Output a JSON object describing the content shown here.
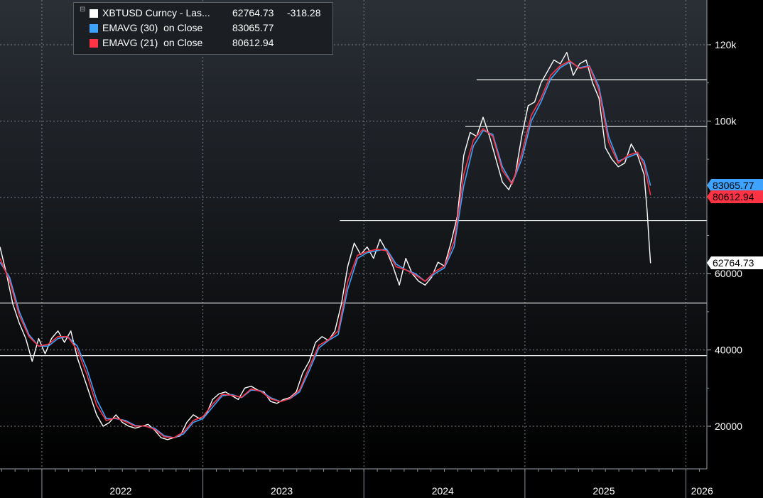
{
  "legend": {
    "items": [
      {
        "label": "XBTUSD Curncy - Las...",
        "value": "62764.73",
        "change": "-318.28",
        "color": "#ffffff"
      },
      {
        "label": "EMAVG (30)  on Close",
        "value": "83065.77",
        "color": "#3ea3ff"
      },
      {
        "label": "EMAVG (21)  on Close",
        "value": "80612.94",
        "color": "#ff3344"
      }
    ]
  },
  "price_tags": [
    {
      "text": "83065.77",
      "value": 83065.77,
      "bg": "#3ea3ff",
      "fg": "#000000"
    },
    {
      "text": "80612.94",
      "value": 80612.94,
      "bg": "#ff3344",
      "fg": "#000000"
    },
    {
      "text": "62764.73",
      "value": 62764.73,
      "bg": "#ffffff",
      "fg": "#000000"
    }
  ],
  "chart_data": {
    "type": "line",
    "ylim": [
      10000,
      130000
    ],
    "y_ticks": [
      {
        "value": 20000,
        "label": "20000"
      },
      {
        "value": 40000,
        "label": "40000"
      },
      {
        "value": 60000,
        "label": "60000"
      },
      {
        "value": 100000,
        "label": "100k"
      },
      {
        "value": 120000,
        "label": "120k"
      }
    ],
    "x_labels": [
      "2022",
      "2023",
      "2024",
      "2025",
      "2026"
    ],
    "x_domain": [
      2021.74,
      2026.13
    ],
    "grid": true,
    "horizontal_levels": [
      {
        "value": 38500,
        "from": 2021.74
      },
      {
        "value": 52300,
        "from": 2021.74
      },
      {
        "value": 73900,
        "from": 2023.85
      },
      {
        "value": 98600,
        "from": 2024.63
      },
      {
        "value": 110800,
        "from": 2024.7
      }
    ],
    "series": [
      {
        "name": "XBTUSD Curncy - Las...",
        "color": "#ffffff",
        "points": [
          [
            2021.74,
            67000
          ],
          [
            2021.78,
            60000
          ],
          [
            2021.82,
            52000
          ],
          [
            2021.86,
            47000
          ],
          [
            2021.9,
            43000
          ],
          [
            2021.94,
            37000
          ],
          [
            2021.98,
            43000
          ],
          [
            2022.02,
            39000
          ],
          [
            2022.06,
            43000
          ],
          [
            2022.1,
            45000
          ],
          [
            2022.14,
            42000
          ],
          [
            2022.18,
            45000
          ],
          [
            2022.22,
            38000
          ],
          [
            2022.26,
            33000
          ],
          [
            2022.3,
            28000
          ],
          [
            2022.34,
            23000
          ],
          [
            2022.38,
            20000
          ],
          [
            2022.42,
            21000
          ],
          [
            2022.46,
            23000
          ],
          [
            2022.5,
            21000
          ],
          [
            2022.54,
            20000
          ],
          [
            2022.58,
            19500
          ],
          [
            2022.62,
            20000
          ],
          [
            2022.66,
            20500
          ],
          [
            2022.7,
            19000
          ],
          [
            2022.74,
            17000
          ],
          [
            2022.78,
            16500
          ],
          [
            2022.82,
            17000
          ],
          [
            2022.86,
            17500
          ],
          [
            2022.9,
            21000
          ],
          [
            2022.94,
            23000
          ],
          [
            2022.98,
            22000
          ],
          [
            2023.02,
            23000
          ],
          [
            2023.06,
            27000
          ],
          [
            2023.1,
            28500
          ],
          [
            2023.14,
            29000
          ],
          [
            2023.18,
            28000
          ],
          [
            2023.22,
            27000
          ],
          [
            2023.26,
            30000
          ],
          [
            2023.3,
            30500
          ],
          [
            2023.34,
            29500
          ],
          [
            2023.38,
            29000
          ],
          [
            2023.42,
            26500
          ],
          [
            2023.46,
            26000
          ],
          [
            2023.5,
            27000
          ],
          [
            2023.54,
            27500
          ],
          [
            2023.58,
            29000
          ],
          [
            2023.62,
            34000
          ],
          [
            2023.66,
            37000
          ],
          [
            2023.7,
            42000
          ],
          [
            2023.74,
            43500
          ],
          [
            2023.78,
            42500
          ],
          [
            2023.82,
            45000
          ],
          [
            2023.86,
            52000
          ],
          [
            2023.9,
            62000
          ],
          [
            2023.94,
            68000
          ],
          [
            2023.98,
            65000
          ],
          [
            2024.02,
            67000
          ],
          [
            2024.06,
            64000
          ],
          [
            2024.1,
            69000
          ],
          [
            2024.14,
            66000
          ],
          [
            2024.18,
            62000
          ],
          [
            2024.22,
            57000
          ],
          [
            2024.26,
            64000
          ],
          [
            2024.3,
            60000
          ],
          [
            2024.34,
            58000
          ],
          [
            2024.38,
            57000
          ],
          [
            2024.42,
            59000
          ],
          [
            2024.46,
            63000
          ],
          [
            2024.5,
            62000
          ],
          [
            2024.54,
            68000
          ],
          [
            2024.58,
            75000
          ],
          [
            2024.62,
            91000
          ],
          [
            2024.66,
            97000
          ],
          [
            2024.7,
            96000
          ],
          [
            2024.74,
            101000
          ],
          [
            2024.78,
            96000
          ],
          [
            2024.82,
            90000
          ],
          [
            2024.86,
            84000
          ],
          [
            2024.9,
            82000
          ],
          [
            2024.94,
            86000
          ],
          [
            2024.98,
            96000
          ],
          [
            2025.02,
            104000
          ],
          [
            2025.06,
            105000
          ],
          [
            2025.1,
            110000
          ],
          [
            2025.14,
            113000
          ],
          [
            2025.18,
            116000
          ],
          [
            2025.22,
            115000
          ],
          [
            2025.26,
            118000
          ],
          [
            2025.3,
            112000
          ],
          [
            2025.34,
            115000
          ],
          [
            2025.38,
            116000
          ],
          [
            2025.42,
            110000
          ],
          [
            2025.46,
            106000
          ],
          [
            2025.5,
            93000
          ],
          [
            2025.54,
            90000
          ],
          [
            2025.58,
            88000
          ],
          [
            2025.62,
            89000
          ],
          [
            2025.66,
            94000
          ],
          [
            2025.7,
            91000
          ],
          [
            2025.74,
            86000
          ],
          [
            2025.76,
            76000
          ],
          [
            2025.77,
            69000
          ],
          [
            2025.78,
            62764.73
          ]
        ]
      },
      {
        "name": "EMAVG (30)  on Close",
        "color": "#3ea3ff",
        "points": [
          [
            2021.74,
            63000
          ],
          [
            2021.8,
            59000
          ],
          [
            2021.86,
            50000
          ],
          [
            2021.92,
            44000
          ],
          [
            2021.98,
            41000
          ],
          [
            2022.04,
            41000
          ],
          [
            2022.1,
            43000
          ],
          [
            2022.16,
            43500
          ],
          [
            2022.22,
            41000
          ],
          [
            2022.28,
            35000
          ],
          [
            2022.34,
            27000
          ],
          [
            2022.4,
            22000
          ],
          [
            2022.46,
            22000
          ],
          [
            2022.52,
            21500
          ],
          [
            2022.58,
            20200
          ],
          [
            2022.64,
            20000
          ],
          [
            2022.7,
            19500
          ],
          [
            2022.76,
            17500
          ],
          [
            2022.82,
            17000
          ],
          [
            2022.88,
            18000
          ],
          [
            2022.94,
            21000
          ],
          [
            2023.0,
            22000
          ],
          [
            2023.06,
            25000
          ],
          [
            2023.12,
            28000
          ],
          [
            2023.18,
            28300
          ],
          [
            2023.24,
            27500
          ],
          [
            2023.3,
            29500
          ],
          [
            2023.36,
            29300
          ],
          [
            2023.42,
            27500
          ],
          [
            2023.48,
            26500
          ],
          [
            2023.54,
            27200
          ],
          [
            2023.6,
            29000
          ],
          [
            2023.66,
            34500
          ],
          [
            2023.72,
            40500
          ],
          [
            2023.78,
            42500
          ],
          [
            2023.84,
            44000
          ],
          [
            2023.9,
            56000
          ],
          [
            2023.96,
            64000
          ],
          [
            2024.02,
            65500
          ],
          [
            2024.08,
            66000
          ],
          [
            2024.14,
            66500
          ],
          [
            2024.2,
            62500
          ],
          [
            2024.26,
            61000
          ],
          [
            2024.32,
            60000
          ],
          [
            2024.38,
            58000
          ],
          [
            2024.44,
            60000
          ],
          [
            2024.5,
            61500
          ],
          [
            2024.56,
            67000
          ],
          [
            2024.62,
            83000
          ],
          [
            2024.68,
            93500
          ],
          [
            2024.74,
            97500
          ],
          [
            2024.8,
            96500
          ],
          [
            2024.86,
            88000
          ],
          [
            2024.92,
            83500
          ],
          [
            2024.98,
            90000
          ],
          [
            2025.04,
            100000
          ],
          [
            2025.1,
            105000
          ],
          [
            2025.16,
            111000
          ],
          [
            2025.22,
            114000
          ],
          [
            2025.28,
            115500
          ],
          [
            2025.34,
            114000
          ],
          [
            2025.4,
            114500
          ],
          [
            2025.46,
            109000
          ],
          [
            2025.52,
            96000
          ],
          [
            2025.58,
            89500
          ],
          [
            2025.64,
            90500
          ],
          [
            2025.7,
            91500
          ],
          [
            2025.74,
            89500
          ],
          [
            2025.78,
            83065.77
          ]
        ]
      },
      {
        "name": "EMAVG (21)  on Close",
        "color": "#ff3344",
        "points": [
          [
            2021.74,
            64000
          ],
          [
            2021.8,
            58000
          ],
          [
            2021.86,
            49000
          ],
          [
            2021.92,
            43500
          ],
          [
            2021.98,
            41000
          ],
          [
            2022.04,
            41500
          ],
          [
            2022.1,
            43500
          ],
          [
            2022.16,
            43500
          ],
          [
            2022.22,
            40000
          ],
          [
            2022.28,
            33500
          ],
          [
            2022.34,
            25500
          ],
          [
            2022.4,
            21500
          ],
          [
            2022.46,
            22200
          ],
          [
            2022.52,
            21200
          ],
          [
            2022.58,
            20000
          ],
          [
            2022.64,
            20100
          ],
          [
            2022.7,
            19200
          ],
          [
            2022.76,
            17200
          ],
          [
            2022.82,
            17000
          ],
          [
            2022.88,
            18500
          ],
          [
            2022.94,
            21500
          ],
          [
            2023.0,
            22500
          ],
          [
            2023.06,
            25800
          ],
          [
            2023.12,
            28400
          ],
          [
            2023.18,
            28100
          ],
          [
            2023.24,
            27600
          ],
          [
            2023.3,
            29800
          ],
          [
            2023.36,
            29100
          ],
          [
            2023.42,
            27200
          ],
          [
            2023.48,
            26400
          ],
          [
            2023.54,
            27300
          ],
          [
            2023.6,
            29500
          ],
          [
            2023.66,
            35500
          ],
          [
            2023.72,
            41200
          ],
          [
            2023.78,
            42700
          ],
          [
            2023.84,
            45000
          ],
          [
            2023.9,
            58000
          ],
          [
            2023.96,
            64800
          ],
          [
            2024.02,
            65800
          ],
          [
            2024.08,
            66400
          ],
          [
            2024.14,
            66000
          ],
          [
            2024.2,
            61800
          ],
          [
            2024.26,
            61000
          ],
          [
            2024.32,
            59600
          ],
          [
            2024.38,
            58000
          ],
          [
            2024.44,
            60500
          ],
          [
            2024.5,
            62000
          ],
          [
            2024.56,
            68500
          ],
          [
            2024.62,
            86000
          ],
          [
            2024.68,
            95000
          ],
          [
            2024.74,
            98000
          ],
          [
            2024.8,
            96000
          ],
          [
            2024.86,
            87000
          ],
          [
            2024.92,
            83500
          ],
          [
            2024.98,
            91500
          ],
          [
            2025.04,
            101500
          ],
          [
            2025.1,
            106000
          ],
          [
            2025.16,
            112000
          ],
          [
            2025.22,
            114500
          ],
          [
            2025.28,
            115800
          ],
          [
            2025.34,
            113800
          ],
          [
            2025.4,
            114300
          ],
          [
            2025.46,
            108000
          ],
          [
            2025.52,
            94500
          ],
          [
            2025.58,
            89000
          ],
          [
            2025.64,
            91000
          ],
          [
            2025.7,
            91800
          ],
          [
            2025.74,
            88500
          ],
          [
            2025.78,
            80612.94
          ]
        ]
      }
    ]
  }
}
